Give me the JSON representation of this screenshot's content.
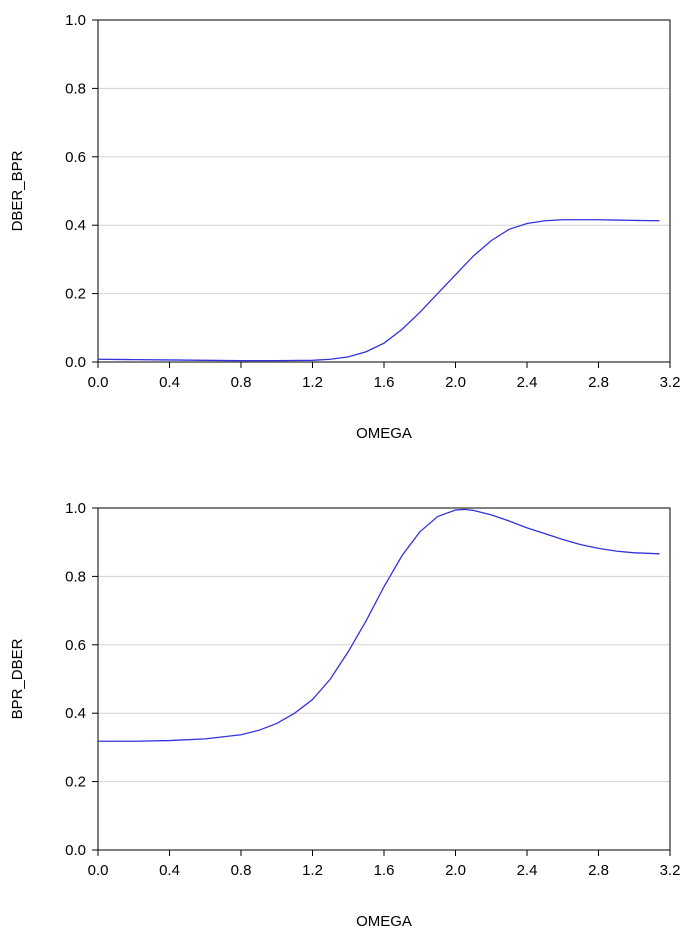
{
  "chart_data": [
    {
      "type": "line",
      "title": "",
      "xlabel": "OMEGA",
      "ylabel": "DBER_BPR",
      "xlim": [
        0.0,
        3.2
      ],
      "ylim": [
        0.0,
        1.0
      ],
      "xticks": [
        "0.0",
        "0.4",
        "0.8",
        "1.2",
        "1.6",
        "2.0",
        "2.4",
        "2.8",
        "3.2"
      ],
      "yticks": [
        "0.0",
        "0.2",
        "0.4",
        "0.6",
        "0.8",
        "1.0"
      ],
      "grid": true,
      "series": [
        {
          "color": "#3333dd",
          "x": [
            0.0,
            0.2,
            0.4,
            0.6,
            0.8,
            1.0,
            1.2,
            1.3,
            1.4,
            1.5,
            1.6,
            1.7,
            1.8,
            1.9,
            2.0,
            2.1,
            2.2,
            2.3,
            2.4,
            2.5,
            2.6,
            2.7,
            2.8,
            2.9,
            3.0,
            3.1416
          ],
          "y": [
            0.008,
            0.007,
            0.006,
            0.005,
            0.004,
            0.004,
            0.005,
            0.008,
            0.015,
            0.03,
            0.055,
            0.095,
            0.145,
            0.2,
            0.255,
            0.31,
            0.355,
            0.388,
            0.405,
            0.413,
            0.416,
            0.416,
            0.416,
            0.415,
            0.414,
            0.413
          ]
        }
      ]
    },
    {
      "type": "line",
      "title": "",
      "xlabel": "OMEGA",
      "ylabel": "BPR_DBER",
      "xlim": [
        0.0,
        3.2
      ],
      "ylim": [
        0.0,
        1.0
      ],
      "xticks": [
        "0.0",
        "0.4",
        "0.8",
        "1.2",
        "1.6",
        "2.0",
        "2.4",
        "2.8",
        "3.2"
      ],
      "yticks": [
        "0.0",
        "0.2",
        "0.4",
        "0.6",
        "0.8",
        "1.0"
      ],
      "grid": true,
      "series": [
        {
          "color": "#3333dd",
          "x": [
            0.0,
            0.2,
            0.4,
            0.6,
            0.8,
            0.9,
            1.0,
            1.1,
            1.2,
            1.3,
            1.4,
            1.5,
            1.6,
            1.7,
            1.8,
            1.9,
            2.0,
            2.05,
            2.1,
            2.2,
            2.3,
            2.4,
            2.5,
            2.6,
            2.7,
            2.8,
            2.9,
            3.0,
            3.1416
          ],
          "y": [
            0.318,
            0.318,
            0.32,
            0.325,
            0.337,
            0.35,
            0.37,
            0.4,
            0.44,
            0.5,
            0.58,
            0.67,
            0.77,
            0.86,
            0.93,
            0.975,
            0.994,
            0.996,
            0.993,
            0.98,
            0.962,
            0.942,
            0.925,
            0.908,
            0.893,
            0.882,
            0.874,
            0.869,
            0.866
          ]
        }
      ]
    }
  ]
}
